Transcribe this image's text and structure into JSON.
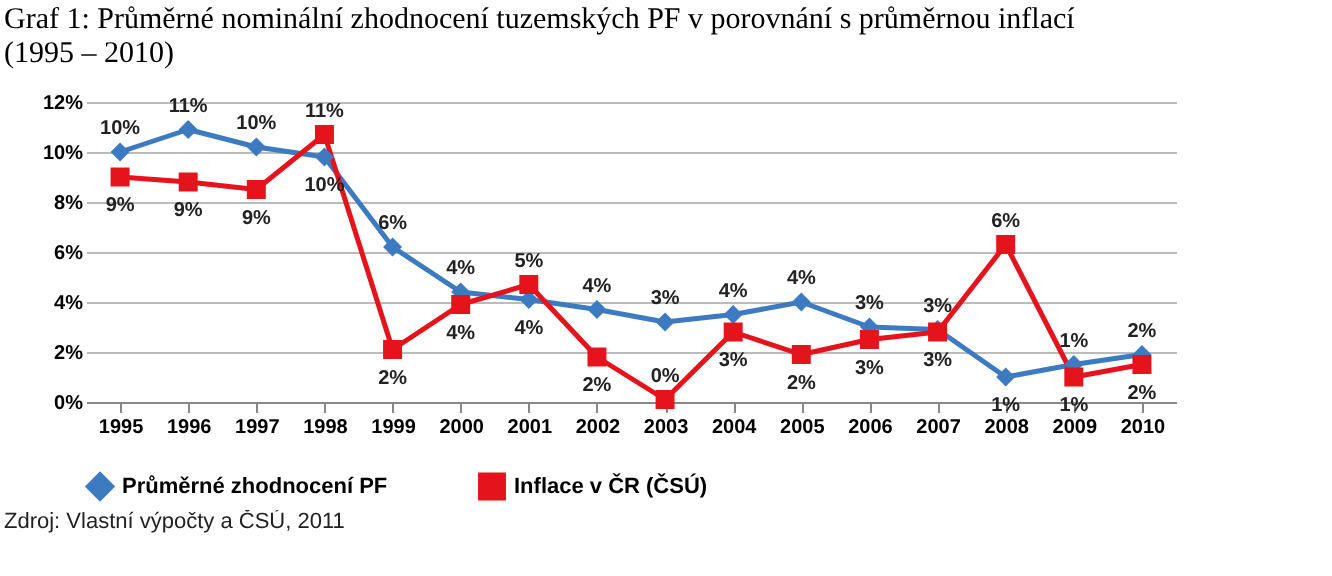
{
  "chart_data": {
    "type": "line",
    "title": "Graf 1: Průměrné nominální zhodnocení tuzemských PF v porovnání s průměrnou inflací (1995 – 2010)",
    "annotations": [
      "Zdroj: Vlastní výpočty a ČSÚ, 2011"
    ],
    "categories": [
      "1995",
      "1996",
      "1997",
      "1998",
      "1999",
      "2000",
      "2001",
      "2002",
      "2003",
      "2004",
      "2005",
      "2006",
      "2007",
      "2008",
      "2009",
      "2010"
    ],
    "series": [
      {
        "name": "Průměrné zhodnocení PF",
        "color": "#3c7bc2",
        "marker": "diamond",
        "values": [
          10.0,
          10.9,
          10.2,
          9.8,
          6.2,
          4.4,
          4.1,
          3.7,
          3.2,
          3.5,
          4.0,
          3.0,
          2.9,
          1.0,
          1.5,
          1.9
        ],
        "value_labels": [
          "10%",
          "11%",
          "10%",
          "10%",
          "6%",
          "4%",
          "4%",
          "4%",
          "3%",
          "4%",
          "4%",
          "3%",
          "3%",
          "1%",
          "1%",
          "2%"
        ]
      },
      {
        "name": "Inflace v ČR (ČSÚ)",
        "color": "#e5131b",
        "marker": "square",
        "values": [
          9.0,
          8.8,
          8.5,
          10.7,
          2.1,
          3.9,
          4.7,
          1.8,
          0.1,
          2.8,
          1.9,
          2.5,
          2.8,
          6.3,
          1.0,
          1.5
        ],
        "value_labels": [
          "9%",
          "9%",
          "9%",
          "11%",
          "2%",
          "4%",
          "5%",
          "2%",
          "0%",
          "3%",
          "2%",
          "3%",
          "3%",
          "6%",
          "1%",
          "2%"
        ]
      }
    ],
    "ylim": [
      0,
      12
    ],
    "yticks": [
      {
        "value": 0,
        "label": "0%"
      },
      {
        "value": 2,
        "label": "2%"
      },
      {
        "value": 4,
        "label": "4%"
      },
      {
        "value": 6,
        "label": "6%"
      },
      {
        "value": 8,
        "label": "8%"
      },
      {
        "value": 10,
        "label": "10%"
      },
      {
        "value": 12,
        "label": "12%"
      }
    ],
    "grid": "y",
    "legend": "bottom",
    "line_style": "solid"
  }
}
